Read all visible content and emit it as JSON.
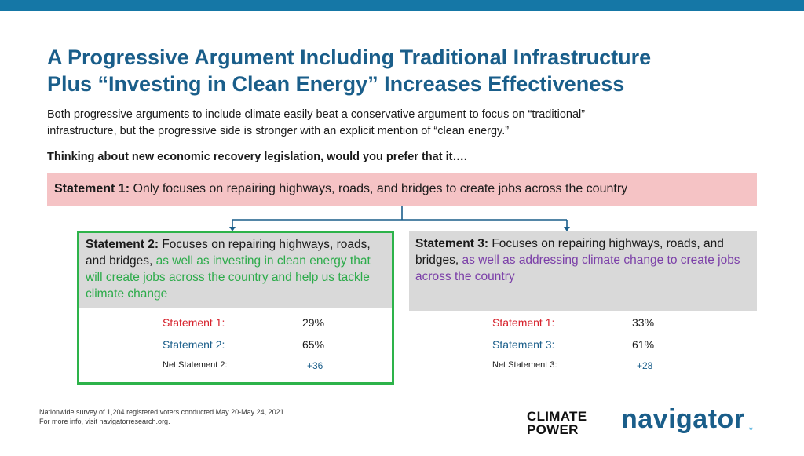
{
  "title_line1": "A Progressive Argument Including Traditional Infrastructure",
  "title_line2": "Plus “Investing in Clean Energy” Increases Effectiveness",
  "subtitle_line1": "Both progressive arguments to include climate easily beat a conservative argument to focus on “traditional”",
  "subtitle_line2": "infrastructure, but the progressive side is stronger with an explicit mention of “clean energy.”",
  "question": "Thinking about new economic recovery legislation, would you prefer that it….",
  "statement1": {
    "label": "Statement 1:",
    "text": " Only focuses on repairing highways, roads, and bridges to create jobs across the country"
  },
  "statement2": {
    "label": "Statement 2:",
    "text_plain": " Focuses on repairing highways, roads, and bridges, ",
    "text_highlight": "as well as investing in clean energy that will create jobs across the country and help us tackle climate change",
    "results": {
      "s1_label": "Statement 1:",
      "s1_value": "29%",
      "s2_label": "Statement 2:",
      "s2_value": "65%",
      "net_label": "Net Statement 2:",
      "net_value": "+36"
    }
  },
  "statement3": {
    "label": "Statement 3:",
    "text_plain": " Focuses on repairing highways, roads, and bridges, ",
    "text_highlight": "as well as addressing climate change to create jobs across the country",
    "results": {
      "s1_label": "Statement 1:",
      "s1_value": "33%",
      "s3_label": "Statement 3:",
      "s3_value": "61%",
      "net_label": "Net Statement 3:",
      "net_value": "+28"
    }
  },
  "footnote_line1": "Nationwide survey of 1,204 registered voters conducted May 20-May 24, 2021.",
  "footnote_line2": "For more info, visit navigatorresearch.org.",
  "logo_climate_line1": "CLIMATE",
  "logo_climate_line2": "POWER",
  "logo_navigator": "navigator",
  "logo_navigator_dot": "*",
  "colors": {
    "top_bar": "#1577a6",
    "title": "#1a5e8a",
    "statement1_bg": "#f5c3c5",
    "green": "#2cab4a",
    "purple": "#7b3fa8",
    "red": "#d6202a"
  }
}
